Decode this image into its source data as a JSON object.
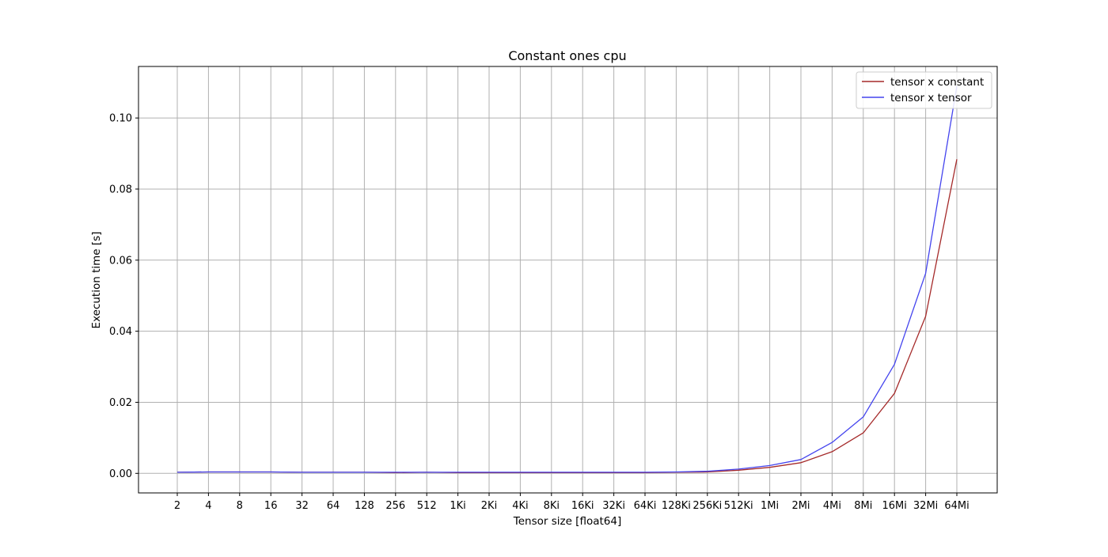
{
  "chart_data": {
    "type": "line",
    "title": "Constant ones cpu",
    "xlabel": "Tensor size [float64]",
    "ylabel": "Execution time [s]",
    "categories": [
      "2",
      "4",
      "8",
      "16",
      "32",
      "64",
      "128",
      "256",
      "512",
      "1Ki",
      "2Ki",
      "4Ki",
      "8Ki",
      "16Ki",
      "32Ki",
      "64Ki",
      "128Ki",
      "256Ki",
      "512Ki",
      "1Mi",
      "2Mi",
      "4Mi",
      "8Mi",
      "16Mi",
      "32Mi",
      "64Mi"
    ],
    "yticks": [
      "0.00",
      "0.02",
      "0.04",
      "0.06",
      "0.08",
      "0.10"
    ],
    "ylim": [
      -0.0055,
      0.1145
    ],
    "grid": true,
    "legend_position": "top-right",
    "series": [
      {
        "name": "tensor x constant",
        "color": "#a52a2a",
        "values": [
          0.0003,
          0.0004,
          0.0004,
          0.0004,
          0.0003,
          0.0003,
          0.0003,
          0.0002,
          0.0003,
          0.0002,
          0.0002,
          0.0002,
          0.0002,
          0.0002,
          0.0002,
          0.0002,
          0.0003,
          0.0004,
          0.0009,
          0.0017,
          0.003,
          0.0061,
          0.0114,
          0.0225,
          0.0442,
          0.0884
        ]
      },
      {
        "name": "tensor x tensor",
        "color": "#4444ee",
        "values": [
          0.0003,
          0.0004,
          0.0004,
          0.0004,
          0.0003,
          0.0003,
          0.0003,
          0.0003,
          0.0003,
          0.0003,
          0.0003,
          0.0003,
          0.0003,
          0.0003,
          0.0003,
          0.0003,
          0.0004,
          0.0006,
          0.0012,
          0.0022,
          0.0039,
          0.0087,
          0.0159,
          0.0307,
          0.0563,
          0.109
        ]
      }
    ]
  }
}
